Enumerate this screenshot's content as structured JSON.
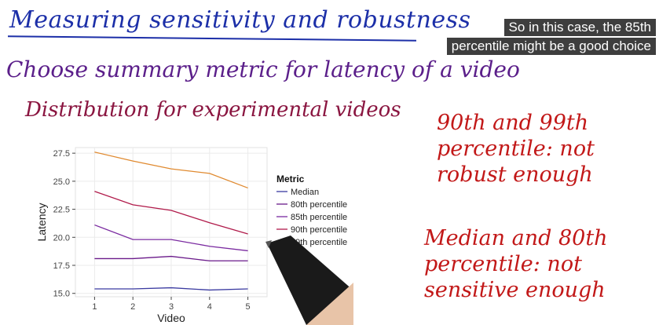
{
  "caption": {
    "line1": "So in this case, the 85th",
    "line2": "percentile might be a good choice"
  },
  "slide": {
    "title": "Measuring sensitivity and robustness",
    "line1": "Choose summary metric for latency of a video",
    "line2": "Distribution for experimental videos",
    "note_top": [
      "90th and 99th",
      "percentile: not",
      "robust enough"
    ],
    "note_bottom": [
      "Median and 80th",
      "percentile: not",
      "sensitive enough"
    ]
  },
  "colors": {
    "title": "#1c2fa8",
    "line1": "#5b1f8a",
    "line2": "#8a1540",
    "notes": "#c21818"
  },
  "chart_data": {
    "type": "line",
    "xlabel": "Video",
    "ylabel": "Latency",
    "x": [
      1,
      2,
      3,
      4,
      5
    ],
    "xlim": [
      0.5,
      5.5
    ],
    "ylim": [
      14.7,
      28.0
    ],
    "yticks": [
      "15.0",
      "17.5",
      "20.0",
      "22.5",
      "25.0",
      "27.5"
    ],
    "grid": true,
    "legend_title": "Metric",
    "legend_position": "right",
    "series": [
      {
        "name": "Median",
        "color": "#3a3aa0",
        "values": [
          15.4,
          15.4,
          15.5,
          15.3,
          15.4
        ]
      },
      {
        "name": "80th percentile",
        "color": "#6a1a8a",
        "values": [
          18.1,
          18.1,
          18.3,
          17.9,
          17.9
        ]
      },
      {
        "name": "85th percentile",
        "color": "#7a2aa0",
        "values": [
          21.1,
          19.8,
          19.8,
          19.2,
          18.8
        ]
      },
      {
        "name": "90th percentile",
        "color": "#b01a4a",
        "values": [
          24.1,
          22.9,
          22.4,
          21.3,
          20.3
        ]
      },
      {
        "name": "99th percentile",
        "color": "#e08a30",
        "values": [
          27.6,
          26.8,
          26.1,
          25.7,
          24.4
        ]
      }
    ]
  }
}
